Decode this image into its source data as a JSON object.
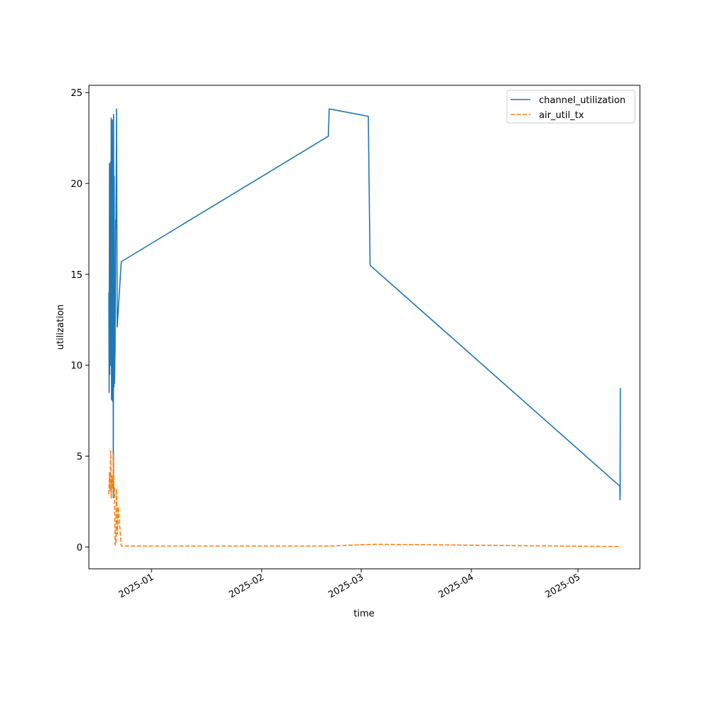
{
  "chart_data": {
    "type": "line",
    "title": "",
    "xlabel": "time",
    "ylabel": "utilization",
    "x_scale": "time",
    "ylim": [
      -1.2,
      25.4
    ],
    "xlim": [
      "2024-12-14T09:00",
      "2025-05-18T10:00"
    ],
    "grid": false,
    "legend_position": "top-right",
    "x_ticks": [
      {
        "date": "2025-01-01",
        "label": "2025-01"
      },
      {
        "date": "2025-02-01",
        "label": "2025-02"
      },
      {
        "date": "2025-03-01",
        "label": "2025-03"
      },
      {
        "date": "2025-04-01",
        "label": "2025-04"
      },
      {
        "date": "2025-05-01",
        "label": "2025-05"
      }
    ],
    "y_ticks": [
      0,
      5,
      10,
      15,
      20,
      25
    ],
    "series": [
      {
        "name": "channel_utilization",
        "color": "#1f77b4",
        "dash": "solid",
        "points": [
          [
            "2024-12-20T00:00",
            14.0
          ],
          [
            "2024-12-20T02:00",
            8.5
          ],
          [
            "2024-12-20T04:00",
            21.1
          ],
          [
            "2024-12-20T06:00",
            9.5
          ],
          [
            "2024-12-20T08:00",
            20.8
          ],
          [
            "2024-12-20T10:00",
            10.0
          ],
          [
            "2024-12-20T12:00",
            21.2
          ],
          [
            "2024-12-20T14:00",
            12.0
          ],
          [
            "2024-12-20T16:00",
            23.6
          ],
          [
            "2024-12-20T18:00",
            8.1
          ],
          [
            "2024-12-20T20:00",
            20.9
          ],
          [
            "2024-12-20T22:00",
            9.0
          ],
          [
            "2024-12-21T00:00",
            23.5
          ],
          [
            "2024-12-21T02:00",
            8.0
          ],
          [
            "2024-12-21T04:00",
            18.5
          ],
          [
            "2024-12-21T06:00",
            2.7
          ],
          [
            "2024-12-21T08:00",
            23.8
          ],
          [
            "2024-12-21T10:00",
            8.8
          ],
          [
            "2024-12-21T12:00",
            20.4
          ],
          [
            "2024-12-21T14:00",
            9.0
          ],
          [
            "2024-12-21T18:00",
            11.0
          ],
          [
            "2024-12-21T22:00",
            18.0
          ],
          [
            "2024-12-22T00:00",
            17.5
          ],
          [
            "2024-12-22T04:00",
            24.1
          ],
          [
            "2024-12-22T08:00",
            12.1
          ],
          [
            "2024-12-23T12:00",
            15.7
          ],
          [
            "2025-02-19T18:00",
            22.6
          ],
          [
            "2025-02-20T00:00",
            24.1
          ],
          [
            "2025-03-03T00:00",
            23.7
          ],
          [
            "2025-03-03T12:00",
            15.5
          ],
          [
            "2025-05-12T18:00",
            3.35
          ],
          [
            "2025-05-12T20:00",
            2.6
          ],
          [
            "2025-05-12T22:00",
            8.75
          ]
        ]
      },
      {
        "name": "air_util_tx",
        "color": "#ff7f0e",
        "dash": "dashed",
        "points": [
          [
            "2024-12-20T00:00",
            2.9
          ],
          [
            "2024-12-20T04:00",
            4.1
          ],
          [
            "2024-12-20T08:00",
            3.1
          ],
          [
            "2024-12-20T12:00",
            5.3
          ],
          [
            "2024-12-20T16:00",
            2.7
          ],
          [
            "2024-12-20T20:00",
            3.9
          ],
          [
            "2024-12-21T00:00",
            3.2
          ],
          [
            "2024-12-21T04:00",
            3.6
          ],
          [
            "2024-12-21T08:00",
            5.1
          ],
          [
            "2024-12-21T10:00",
            2.8
          ],
          [
            "2024-12-21T14:00",
            3.3
          ],
          [
            "2024-12-21T18:00",
            0.1
          ],
          [
            "2024-12-22T00:00",
            0.2
          ],
          [
            "2024-12-22T04:00",
            3.2
          ],
          [
            "2024-12-22T10:00",
            0.7
          ],
          [
            "2024-12-22T16:00",
            2.2
          ],
          [
            "2024-12-23T12:00",
            0.05
          ],
          [
            "2025-02-20T00:00",
            0.05
          ],
          [
            "2025-03-05T00:00",
            0.15
          ],
          [
            "2025-04-01T00:00",
            0.1
          ],
          [
            "2025-05-12T22:00",
            0.02
          ]
        ]
      }
    ]
  }
}
